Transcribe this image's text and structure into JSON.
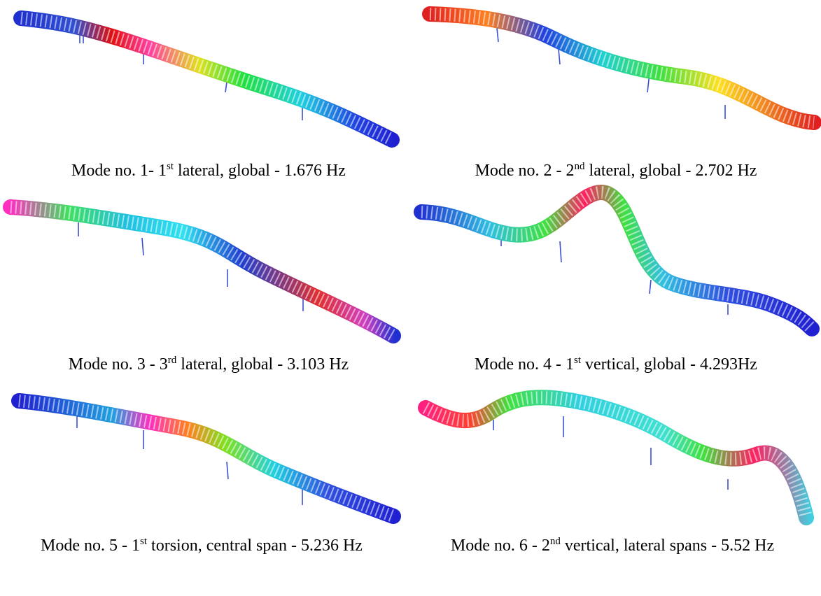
{
  "panels": [
    {
      "caption": {
        "before": "Mode no. 1- 1",
        "sup": "st",
        "after": " lateral, global - 1.676 Hz"
      }
    },
    {
      "caption": {
        "before": "Mode no. 2 - 2",
        "sup": "nd",
        "after": " lateral, global - 2.702 Hz"
      }
    },
    {
      "caption": {
        "before": "Mode no. 3 - 3",
        "sup": "rd",
        "after": " lateral, global - 3.103 Hz"
      }
    },
    {
      "caption": {
        "before": "Mode no. 4 - 1",
        "sup": "st",
        "after": " vertical, global - 4.293Hz"
      }
    },
    {
      "caption": {
        "before": "Mode no. 5 - 1",
        "sup": "st",
        "after": " torsion, central span - 5.236 Hz"
      }
    },
    {
      "caption": {
        "before": "Mode no. 6 - 2",
        "sup": "nd",
        "after": " vertical, lateral spans - 5.52 Hz"
      }
    }
  ]
}
